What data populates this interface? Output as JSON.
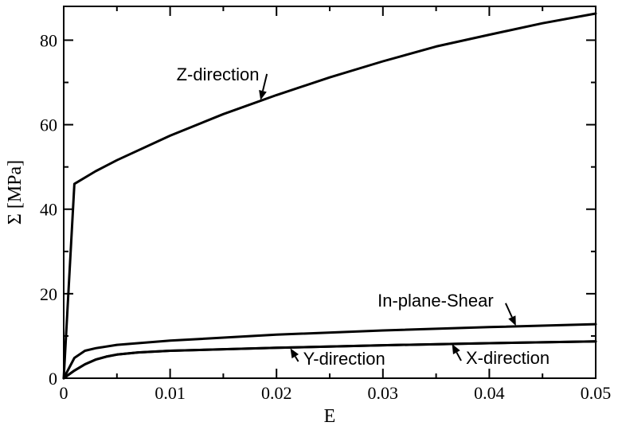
{
  "chart_data": {
    "type": "line",
    "xlabel": "E",
    "ylabel": "Σ [MPa]",
    "xlim": [
      0,
      0.05
    ],
    "ylim": [
      0,
      88
    ],
    "xticks": [
      0,
      0.01,
      0.02,
      0.03,
      0.04,
      0.05
    ],
    "xtick_labels": [
      "0",
      "0.01",
      "0.02",
      "0.03",
      "0.04",
      "0.05"
    ],
    "yticks": [
      0,
      20,
      40,
      60,
      80
    ],
    "ytick_labels": [
      "0",
      "20",
      "40",
      "60",
      "80"
    ],
    "grid": false,
    "series": [
      {
        "name": "Z-direction",
        "x": [
          0,
          0.001,
          0.003,
          0.005,
          0.01,
          0.015,
          0.02,
          0.025,
          0.03,
          0.035,
          0.04,
          0.045,
          0.05
        ],
        "y": [
          0,
          46,
          49,
          51.6,
          57.4,
          62.5,
          67,
          71.2,
          75,
          78.5,
          81.3,
          84,
          86.3
        ]
      },
      {
        "name": "In-plane-Shear",
        "x": [
          0,
          0.001,
          0.002,
          0.003,
          0.005,
          0.01,
          0.02,
          0.03,
          0.04,
          0.05
        ],
        "y": [
          0,
          4.8,
          6.5,
          7.1,
          7.9,
          8.9,
          10.3,
          11.3,
          12.1,
          12.8
        ]
      },
      {
        "name": "Y-direction",
        "x": [
          0,
          0.001,
          0.002,
          0.003,
          0.004,
          0.005,
          0.007,
          0.01,
          0.02,
          0.03,
          0.04,
          0.05
        ],
        "y": [
          0,
          1.8,
          3.3,
          4.4,
          5.1,
          5.6,
          6.1,
          6.5,
          7.2,
          7.8,
          8.3,
          8.7
        ]
      },
      {
        "name": "X-direction",
        "x": [
          0,
          0.001,
          0.002,
          0.003,
          0.004,
          0.005,
          0.007,
          0.01,
          0.02,
          0.03,
          0.04,
          0.05
        ],
        "y": [
          0,
          1.8,
          3.3,
          4.4,
          5.1,
          5.6,
          6.1,
          6.5,
          7.2,
          7.8,
          8.3,
          8.7
        ]
      }
    ],
    "annotations": [
      {
        "text": "Z-direction",
        "target_x": 0.0185,
        "target_y": 65.8,
        "label_x": 0.0106,
        "label_y": 70.5
      },
      {
        "text": "In-plane-Shear",
        "target_x": 0.0425,
        "target_y": 12.4,
        "label_x": 0.0295,
        "label_y": 17.0
      },
      {
        "text": "Y-direction",
        "target_x": 0.0213,
        "target_y": 7.1,
        "label_x": 0.0225,
        "label_y": 3.2
      },
      {
        "text": "X-direction",
        "target_x": 0.0365,
        "target_y": 8.1,
        "label_x": 0.0378,
        "label_y": 3.4
      }
    ]
  }
}
